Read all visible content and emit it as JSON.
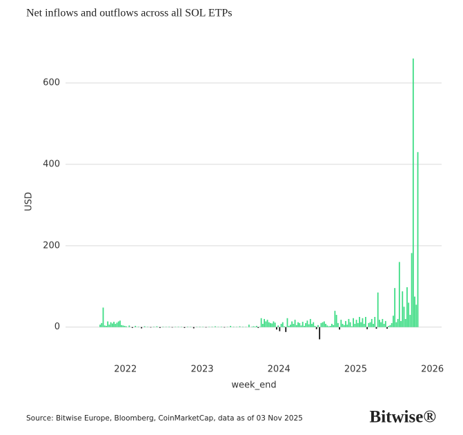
{
  "chart_data": {
    "type": "bar",
    "title": "Net inflows and outflows across all SOL ETPs",
    "x_label": "week_end",
    "y_label": "USD",
    "source": "Source: Bitwise Europe, Bloomberg, CoinMarketCap, data as of 03 Nov 2025",
    "logo": "Bitwise®",
    "grid": true,
    "xlim": [
      2021.04,
      2026.12
    ],
    "xticks": [
      2022,
      2023,
      2024,
      2025,
      2026
    ],
    "ylim": [
      -70,
      685
    ],
    "yticks": [
      0,
      200,
      400,
      600
    ],
    "series": [
      {
        "color": "#3ddc84",
        "negative_color": "#111111",
        "x": [
          2021.67,
          2021.69,
          2021.71,
          2021.73,
          2021.75,
          2021.77,
          2021.79,
          2021.81,
          2021.83,
          2021.85,
          2021.87,
          2021.89,
          2021.91,
          2021.93,
          2021.95,
          2021.97,
          2021.99,
          2022.01,
          2022.05,
          2022.09,
          2022.13,
          2022.17,
          2022.21,
          2022.25,
          2022.29,
          2022.33,
          2022.37,
          2022.41,
          2022.45,
          2022.49,
          2022.53,
          2022.57,
          2022.61,
          2022.65,
          2022.69,
          2022.73,
          2022.77,
          2022.81,
          2022.85,
          2022.89,
          2022.93,
          2022.97,
          2023.01,
          2023.05,
          2023.09,
          2023.13,
          2023.17,
          2023.21,
          2023.25,
          2023.29,
          2023.33,
          2023.37,
          2023.41,
          2023.45,
          2023.49,
          2023.53,
          2023.57,
          2023.61,
          2023.65,
          2023.67,
          2023.69,
          2023.71,
          2023.73,
          2023.75,
          2023.77,
          2023.79,
          2023.81,
          2023.83,
          2023.85,
          2023.87,
          2023.89,
          2023.91,
          2023.93,
          2023.95,
          2023.97,
          2023.99,
          2024.01,
          2024.03,
          2024.05,
          2024.07,
          2024.09,
          2024.11,
          2024.13,
          2024.15,
          2024.17,
          2024.19,
          2024.21,
          2024.23,
          2024.25,
          2024.27,
          2024.29,
          2024.31,
          2024.33,
          2024.35,
          2024.37,
          2024.39,
          2024.41,
          2024.43,
          2024.45,
          2024.47,
          2024.49,
          2024.51,
          2024.53,
          2024.55,
          2024.57,
          2024.59,
          2024.61,
          2024.63,
          2024.65,
          2024.67,
          2024.69,
          2024.71,
          2024.73,
          2024.75,
          2024.77,
          2024.79,
          2024.81,
          2024.83,
          2024.85,
          2024.87,
          2024.89,
          2024.91,
          2024.93,
          2024.95,
          2024.97,
          2024.99,
          2025.01,
          2025.03,
          2025.05,
          2025.07,
          2025.09,
          2025.11,
          2025.13,
          2025.15,
          2025.17,
          2025.19,
          2025.21,
          2025.23,
          2025.25,
          2025.27,
          2025.29,
          2025.31,
          2025.33,
          2025.35,
          2025.37,
          2025.39,
          2025.41,
          2025.43,
          2025.45,
          2025.47,
          2025.49,
          2025.51,
          2025.53,
          2025.55,
          2025.57,
          2025.59,
          2025.61,
          2025.63,
          2025.65,
          2025.67,
          2025.69,
          2025.71,
          2025.73,
          2025.75,
          2025.77,
          2025.79,
          2025.81
        ],
        "values": [
          6,
          10,
          48,
          4,
          3,
          14,
          6,
          12,
          9,
          13,
          8,
          11,
          14,
          16,
          5,
          4,
          3,
          2,
          4,
          -2,
          3,
          1,
          -3,
          2,
          0.5,
          -1,
          1,
          2,
          -2,
          1,
          0.5,
          1,
          -1,
          0.5,
          1,
          0.5,
          -2,
          1,
          0.5,
          -3,
          0.5,
          1,
          0.5,
          -1,
          0.5,
          1,
          2,
          0.5,
          1,
          -1,
          0.5,
          3,
          1,
          0.5,
          2,
          1,
          0.5,
          6,
          1,
          2,
          1,
          3,
          -2,
          1,
          22,
          8,
          20,
          14,
          18,
          12,
          10,
          9,
          14,
          11,
          -6,
          4,
          -10,
          8,
          12,
          2,
          -12,
          22,
          3,
          6,
          14,
          8,
          18,
          5,
          12,
          10,
          4,
          13,
          3,
          10,
          16,
          7,
          20,
          8,
          12,
          3,
          -5,
          5,
          -30,
          10,
          12,
          14,
          8,
          4,
          2,
          3,
          8,
          5,
          40,
          30,
          10,
          -6,
          18,
          8,
          5,
          15,
          6,
          20,
          12,
          2,
          22,
          8,
          18,
          10,
          25,
          12,
          22,
          8,
          25,
          -5,
          10,
          12,
          20,
          8,
          25,
          -4,
          85,
          18,
          12,
          20,
          8,
          15,
          -4,
          3,
          5,
          10,
          28,
          96,
          12,
          20,
          160,
          15,
          88,
          50,
          20,
          98,
          60,
          30,
          182,
          660,
          75,
          55,
          430
        ]
      }
    ]
  }
}
